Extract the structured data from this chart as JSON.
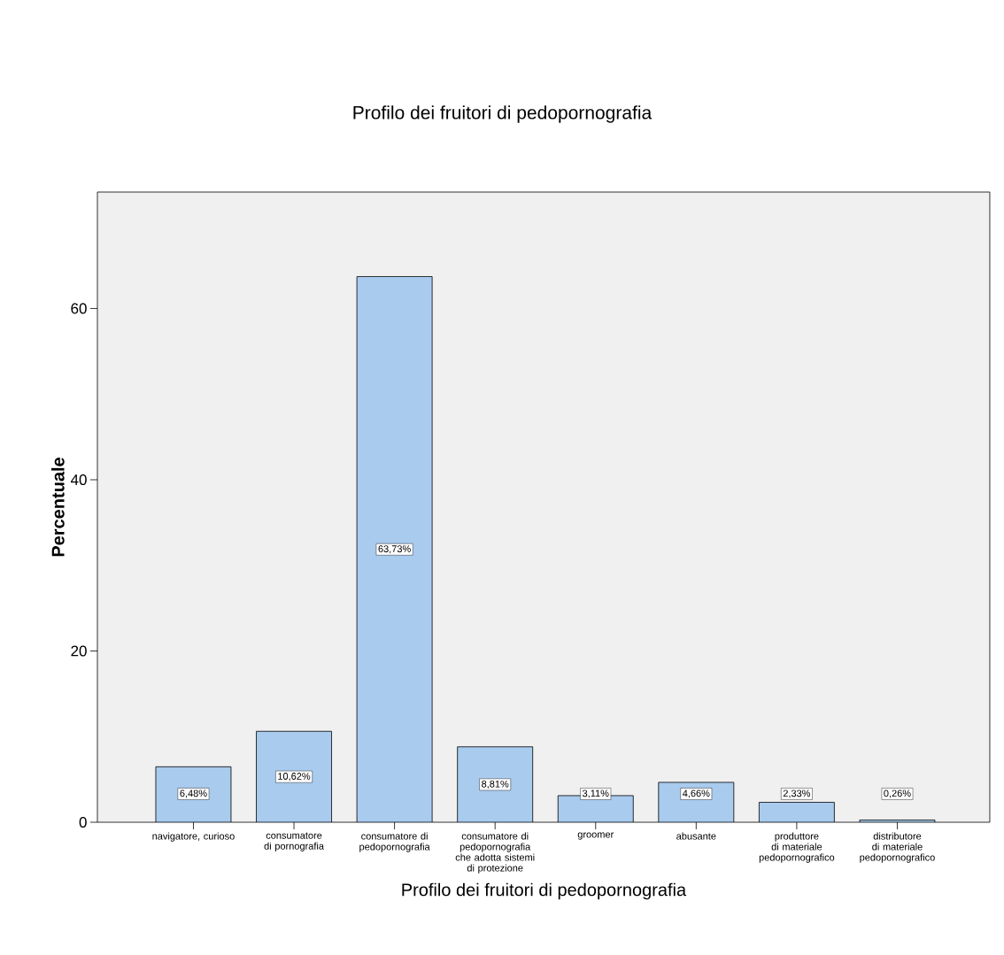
{
  "chart_data": {
    "type": "bar",
    "title": "Profilo dei fruitori di pedopornografia",
    "xlabel": "Profilo dei fruitori di pedopornografia",
    "ylabel": "Percentuale",
    "categories": [
      "navigatore, curioso",
      "consumatore di pornografia",
      "consumatore di pedopornografia",
      "consumatore di pedopornografia che adotta sistemi di protezione",
      "groomer",
      "abusante",
      "produttore di materiale pedopornografico",
      "distributore di materiale pedopornografico"
    ],
    "values": [
      6.48,
      10.62,
      63.73,
      8.81,
      3.11,
      4.66,
      2.33,
      0.26
    ],
    "value_labels": [
      "6,48%",
      "10,62%",
      "63,73%",
      "8,81%",
      "3,11%",
      "4,66%",
      "2,33%",
      "0,26%"
    ],
    "color": "#a8cbee",
    "ylim": [
      0,
      73.6
    ],
    "yticks": [
      0,
      20,
      40,
      60
    ],
    "grid": false
  }
}
